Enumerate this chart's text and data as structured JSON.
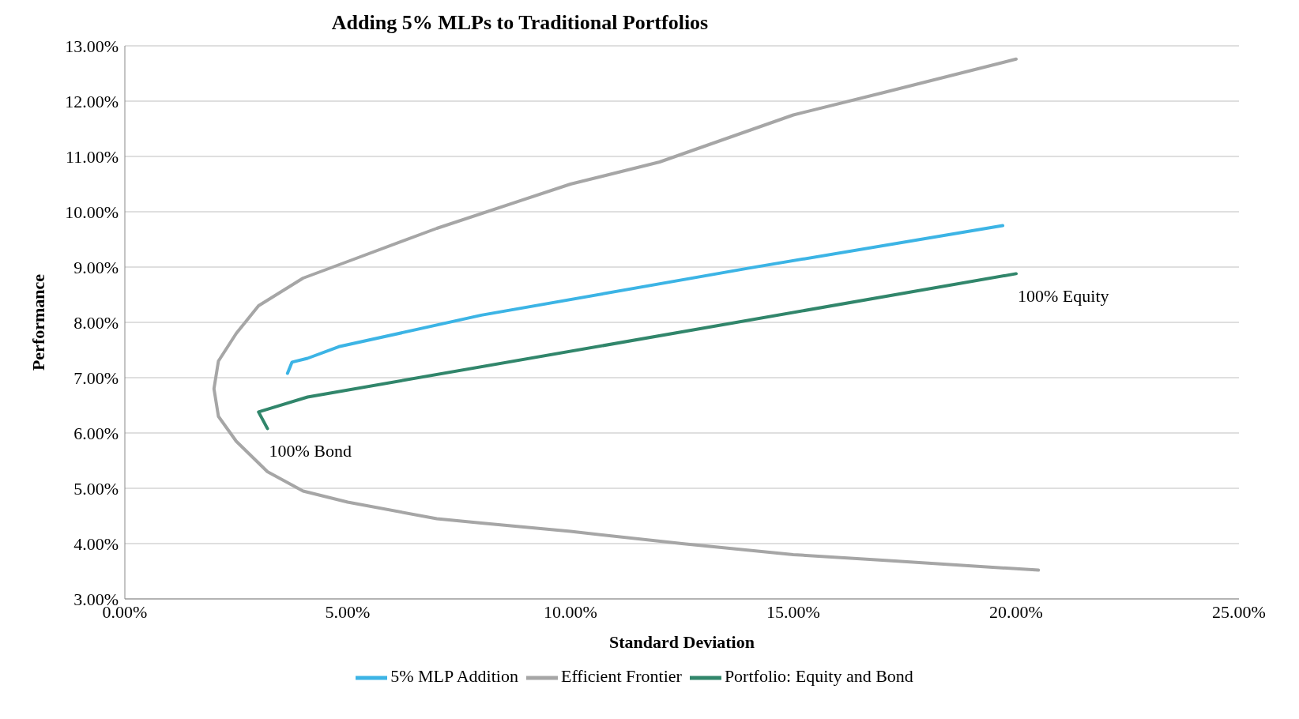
{
  "chart_data": {
    "type": "line",
    "title": "Adding 5% MLPs to Traditional Portfolios",
    "xlabel": "Standard Deviation",
    "ylabel": "Performance",
    "xlim": [
      0,
      25
    ],
    "xticks": [
      {
        "value": 0,
        "label": "0.00%"
      },
      {
        "value": 5,
        "label": "5.00%"
      },
      {
        "value": 10,
        "label": "10.00%"
      },
      {
        "value": 15,
        "label": "15.00%"
      },
      {
        "value": 20,
        "label": "20.00%"
      },
      {
        "value": 25,
        "label": "25.00%"
      }
    ],
    "ylim": [
      3,
      13
    ],
    "yticks": [
      {
        "value": 3,
        "label": "3.00%"
      },
      {
        "value": 4,
        "label": "4.00%"
      },
      {
        "value": 5,
        "label": "5.00%"
      },
      {
        "value": 6,
        "label": "6.00%"
      },
      {
        "value": 7,
        "label": "7.00%"
      },
      {
        "value": 8,
        "label": "8.00%"
      },
      {
        "value": 9,
        "label": "9.00%"
      },
      {
        "value": 10,
        "label": "10.00%"
      },
      {
        "value": 11,
        "label": "11.00%"
      },
      {
        "value": 12,
        "label": "12.00%"
      },
      {
        "value": 13,
        "label": "13.00%"
      }
    ],
    "grid": "y",
    "legend": "bottom",
    "marker": "none",
    "line_style": "solid",
    "series": [
      {
        "name": "Efficient Frontier",
        "color": "#a6a6a6",
        "x": [
          20.5,
          17,
          15,
          12.5,
          10,
          8,
          7,
          5,
          4,
          3.2,
          2.5,
          2.1,
          2,
          2.1,
          2.5,
          3,
          4,
          5,
          7,
          10,
          12,
          15,
          17,
          20
        ],
        "values": [
          3.52,
          3.7,
          3.8,
          4.0,
          4.22,
          4.37,
          4.45,
          4.75,
          4.95,
          5.3,
          5.85,
          6.3,
          6.8,
          7.3,
          7.8,
          8.3,
          8.8,
          9.1,
          9.7,
          10.5,
          10.9,
          11.75,
          12.15,
          12.76
        ]
      },
      {
        "name": "Portfolio: Equity and Bond",
        "color": "#31866b",
        "x": [
          3.2,
          3.0,
          4.1,
          20
        ],
        "values": [
          6.08,
          6.38,
          6.65,
          8.88
        ]
      },
      {
        "name": "5% MLP Addition",
        "color": "#3cb4e5",
        "x": [
          3.65,
          3.75,
          4.1,
          4.8,
          8,
          14,
          19.7
        ],
        "values": [
          7.08,
          7.28,
          7.35,
          7.56,
          8.13,
          8.98,
          9.75
        ]
      }
    ],
    "annotations": [
      {
        "text": "100% Equity",
        "x": 20,
        "y": 8.88
      },
      {
        "text": "100% Bond",
        "x": 3.2,
        "y": 6.08
      }
    ]
  }
}
